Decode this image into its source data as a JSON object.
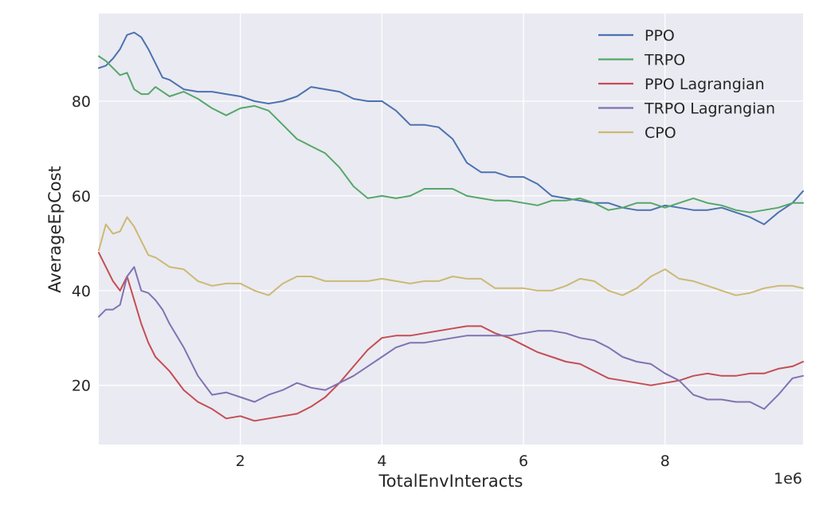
{
  "chart_data": {
    "type": "line",
    "title": "",
    "xlabel": "TotalEnvInteracts",
    "ylabel": "AverageEpCost",
    "x_offset_label": "1e6",
    "xlim": [
      0.0,
      9.95
    ],
    "ylim": [
      7.5,
      98.5
    ],
    "x_ticks": [
      2,
      4,
      6,
      8
    ],
    "x_tick_labels": [
      "2",
      "4",
      "6",
      "8"
    ],
    "y_ticks": [
      20,
      40,
      60,
      80
    ],
    "y_tick_labels": [
      "20",
      "40",
      "60",
      "80"
    ],
    "grid": true,
    "legend_position": "top-right",
    "series": [
      {
        "name": "PPO",
        "color": "#4c72b0",
        "x": [
          0.0,
          0.1,
          0.2,
          0.3,
          0.4,
          0.5,
          0.6,
          0.7,
          0.8,
          0.9,
          1.0,
          1.2,
          1.4,
          1.6,
          1.8,
          2.0,
          2.2,
          2.4,
          2.6,
          2.8,
          3.0,
          3.2,
          3.4,
          3.6,
          3.8,
          4.0,
          4.2,
          4.4,
          4.6,
          4.8,
          5.0,
          5.2,
          5.4,
          5.6,
          5.8,
          6.0,
          6.2,
          6.4,
          6.6,
          6.8,
          7.0,
          7.2,
          7.4,
          7.6,
          7.8,
          8.0,
          8.2,
          8.4,
          8.6,
          8.8,
          9.0,
          9.2,
          9.4,
          9.6,
          9.8,
          9.95
        ],
        "y": [
          87,
          87.5,
          89,
          91,
          94,
          94.5,
          93.5,
          91,
          88,
          85,
          84.5,
          82.5,
          82,
          82,
          81.5,
          81,
          80,
          79.5,
          80,
          81,
          83,
          82.5,
          82,
          80.5,
          80,
          80,
          78,
          75,
          75,
          74.5,
          72,
          67,
          65,
          65,
          64,
          64,
          62.5,
          60,
          59.5,
          59,
          58.5,
          58.5,
          57.5,
          57,
          57,
          58,
          57.5,
          57,
          57,
          57.5,
          56.5,
          55.5,
          54,
          56.5,
          58.5,
          61
        ]
      },
      {
        "name": "TRPO",
        "color": "#55a868",
        "x": [
          0.0,
          0.1,
          0.2,
          0.3,
          0.4,
          0.5,
          0.6,
          0.7,
          0.8,
          0.9,
          1.0,
          1.2,
          1.4,
          1.6,
          1.8,
          2.0,
          2.2,
          2.4,
          2.6,
          2.8,
          3.0,
          3.2,
          3.4,
          3.6,
          3.8,
          4.0,
          4.2,
          4.4,
          4.6,
          4.8,
          5.0,
          5.2,
          5.4,
          5.6,
          5.8,
          6.0,
          6.2,
          6.4,
          6.6,
          6.8,
          7.0,
          7.2,
          7.4,
          7.6,
          7.8,
          8.0,
          8.2,
          8.4,
          8.6,
          8.8,
          9.0,
          9.2,
          9.4,
          9.6,
          9.8,
          9.95
        ],
        "y": [
          89.5,
          88.5,
          87,
          85.5,
          86,
          82.5,
          81.5,
          81.5,
          83,
          82,
          81,
          82,
          80.5,
          78.5,
          77,
          78.5,
          79,
          78,
          75,
          72,
          70.5,
          69,
          66,
          62,
          59.5,
          60,
          59.5,
          60,
          61.5,
          61.5,
          61.5,
          60,
          59.5,
          59,
          59,
          58.5,
          58,
          59,
          59,
          59.5,
          58.5,
          57,
          57.5,
          58.5,
          58.5,
          57.5,
          58.5,
          59.5,
          58.5,
          58,
          57,
          56.5,
          57,
          57.5,
          58.5,
          58.5
        ]
      },
      {
        "name": "PPO Lagrangian",
        "color": "#c44e52",
        "x": [
          0.0,
          0.1,
          0.2,
          0.3,
          0.4,
          0.5,
          0.6,
          0.7,
          0.8,
          0.9,
          1.0,
          1.2,
          1.4,
          1.6,
          1.8,
          2.0,
          2.2,
          2.4,
          2.6,
          2.8,
          3.0,
          3.2,
          3.4,
          3.6,
          3.8,
          4.0,
          4.2,
          4.4,
          4.6,
          4.8,
          5.0,
          5.2,
          5.4,
          5.6,
          5.8,
          6.0,
          6.2,
          6.4,
          6.6,
          6.8,
          7.0,
          7.2,
          7.4,
          7.6,
          7.8,
          8.0,
          8.2,
          8.4,
          8.6,
          8.8,
          9.0,
          9.2,
          9.4,
          9.6,
          9.8,
          9.95
        ],
        "y": [
          48,
          45,
          42,
          40,
          43,
          38,
          33,
          29,
          26,
          24.5,
          23,
          19,
          16.5,
          15,
          13,
          13.5,
          12.5,
          13,
          13.5,
          14,
          15.5,
          17.5,
          20.5,
          24,
          27.5,
          30,
          30.5,
          30.5,
          31,
          31.5,
          32,
          32.5,
          32.5,
          31,
          30,
          28.5,
          27,
          26,
          25,
          24.5,
          23,
          21.5,
          21,
          20.5,
          20,
          20.5,
          21,
          22,
          22.5,
          22,
          22,
          22.5,
          22.5,
          23.5,
          24,
          25
        ]
      },
      {
        "name": "TRPO Lagrangian",
        "color": "#8172b2",
        "x": [
          0.0,
          0.1,
          0.2,
          0.3,
          0.4,
          0.5,
          0.6,
          0.7,
          0.8,
          0.9,
          1.0,
          1.2,
          1.4,
          1.6,
          1.8,
          2.0,
          2.2,
          2.4,
          2.6,
          2.8,
          3.0,
          3.2,
          3.4,
          3.6,
          3.8,
          4.0,
          4.2,
          4.4,
          4.6,
          4.8,
          5.0,
          5.2,
          5.4,
          5.6,
          5.8,
          6.0,
          6.2,
          6.4,
          6.6,
          6.8,
          7.0,
          7.2,
          7.4,
          7.6,
          7.8,
          8.0,
          8.2,
          8.4,
          8.6,
          8.8,
          9.0,
          9.2,
          9.4,
          9.6,
          9.8,
          9.95
        ],
        "y": [
          34.5,
          36,
          36,
          37,
          43,
          45,
          40,
          39.5,
          38,
          36,
          33,
          28,
          22,
          18,
          18.5,
          17.5,
          16.5,
          18,
          19,
          20.5,
          19.5,
          19,
          20.5,
          22,
          24,
          26,
          28,
          29,
          29,
          29.5,
          30,
          30.5,
          30.5,
          30.5,
          30.5,
          31,
          31.5,
          31.5,
          31,
          30,
          29.5,
          28,
          26,
          25,
          24.5,
          22.5,
          21,
          18,
          17,
          17,
          16.5,
          16.5,
          15,
          18,
          21.5,
          22
        ]
      },
      {
        "name": "CPO",
        "color": "#ccb974",
        "x": [
          0.0,
          0.1,
          0.2,
          0.3,
          0.4,
          0.5,
          0.6,
          0.7,
          0.8,
          0.9,
          1.0,
          1.2,
          1.4,
          1.6,
          1.8,
          2.0,
          2.2,
          2.4,
          2.6,
          2.8,
          3.0,
          3.2,
          3.4,
          3.6,
          3.8,
          4.0,
          4.2,
          4.4,
          4.6,
          4.8,
          5.0,
          5.2,
          5.4,
          5.6,
          5.8,
          6.0,
          6.2,
          6.4,
          6.6,
          6.8,
          7.0,
          7.2,
          7.4,
          7.6,
          7.8,
          8.0,
          8.2,
          8.4,
          8.6,
          8.8,
          9.0,
          9.2,
          9.4,
          9.6,
          9.8,
          9.95
        ],
        "y": [
          48.5,
          54,
          52,
          52.5,
          55.5,
          53.5,
          50.5,
          47.5,
          47,
          46,
          45,
          44.5,
          42,
          41,
          41.5,
          41.5,
          40,
          39,
          41.5,
          43,
          43,
          42,
          42,
          42,
          42,
          42.5,
          42,
          41.5,
          42,
          42,
          43,
          42.5,
          42.5,
          40.5,
          40.5,
          40.5,
          40,
          40,
          41,
          42.5,
          42,
          40,
          39,
          40.5,
          43,
          44.5,
          42.5,
          42,
          41,
          40,
          39,
          39.5,
          40.5,
          41,
          41,
          40.5
        ]
      }
    ]
  }
}
